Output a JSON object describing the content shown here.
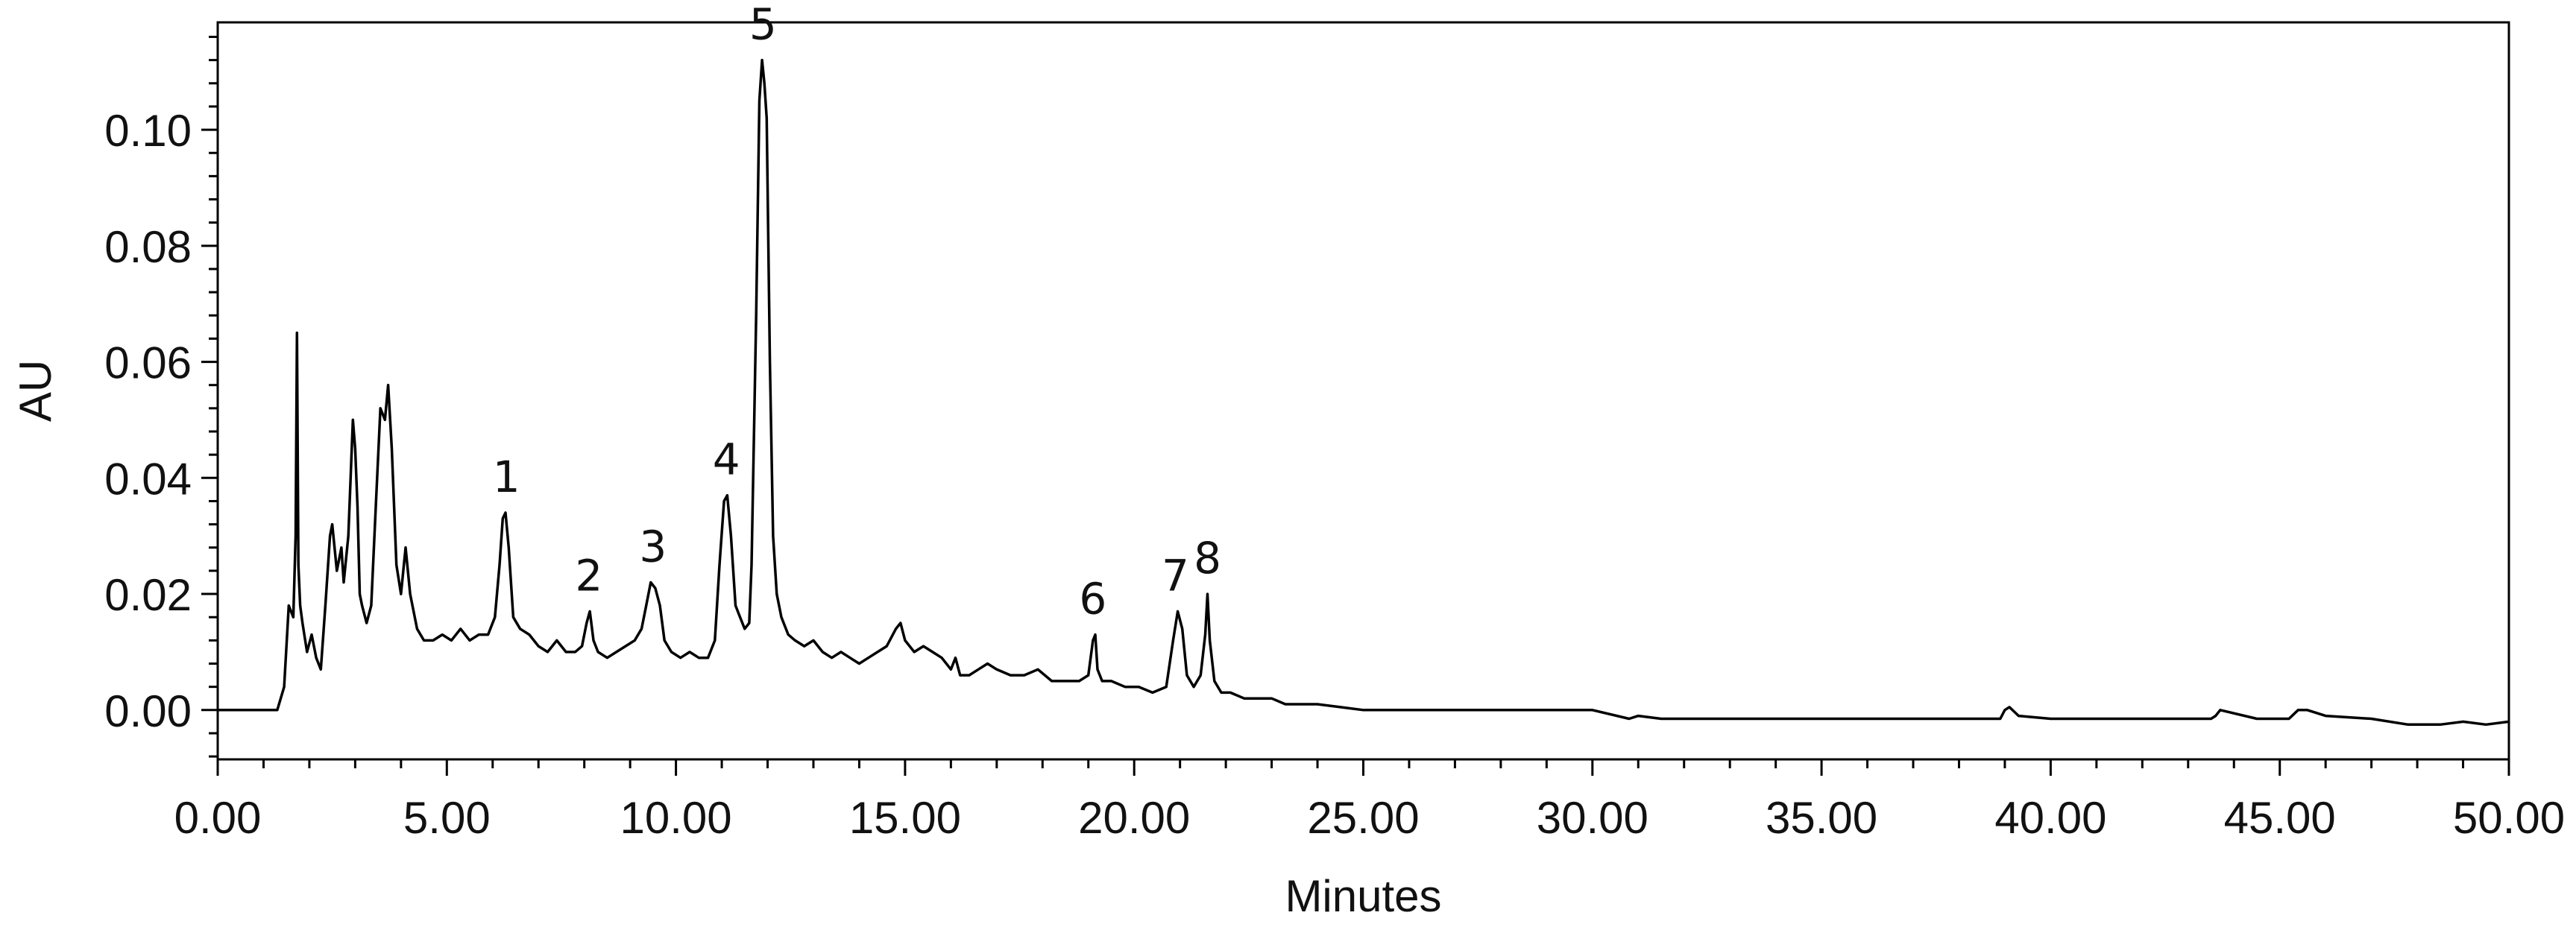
{
  "chart_data": {
    "type": "line",
    "title": "",
    "xlabel": "Minutes",
    "ylabel": "AU",
    "xlim": [
      0,
      50
    ],
    "ylim": [
      -0.0085,
      0.1185
    ],
    "x_ticks": [
      {
        "value": 0,
        "label": "0.00"
      },
      {
        "value": 5,
        "label": "5.00"
      },
      {
        "value": 10,
        "label": "10.00"
      },
      {
        "value": 15,
        "label": "15.00"
      },
      {
        "value": 20,
        "label": "20.00"
      },
      {
        "value": 25,
        "label": "25.00"
      },
      {
        "value": 30,
        "label": "30.00"
      },
      {
        "value": 35,
        "label": "35.00"
      },
      {
        "value": 40,
        "label": "40.00"
      },
      {
        "value": 45,
        "label": "45.00"
      },
      {
        "value": 50,
        "label": "50.00"
      }
    ],
    "y_ticks": [
      {
        "value": 0,
        "label": "0.00"
      },
      {
        "value": 0.02,
        "label": "0.02"
      },
      {
        "value": 0.04,
        "label": "0.04"
      },
      {
        "value": 0.06,
        "label": "0.06"
      },
      {
        "value": 0.08,
        "label": "0.08"
      },
      {
        "value": 0.1,
        "label": "0.10"
      }
    ],
    "grid": false,
    "legend": "none",
    "line_color": "#000000",
    "series": [
      {
        "x": [
          0,
          1.3,
          1.45,
          1.55,
          1.65,
          1.7,
          1.73,
          1.76,
          1.8,
          1.85,
          1.95,
          2.05,
          2.15,
          2.25,
          2.35,
          2.45,
          2.5,
          2.6,
          2.7,
          2.75,
          2.85,
          2.95,
          3.0,
          3.05,
          3.1,
          3.15,
          3.25,
          3.35,
          3.45,
          3.55,
          3.65,
          3.72,
          3.8,
          3.9,
          4.0,
          4.1,
          4.2,
          4.35,
          4.5,
          4.7,
          4.9,
          5.1,
          5.3,
          5.5,
          5.7,
          5.9,
          6.05,
          6.15,
          6.22,
          6.28,
          6.35,
          6.45,
          6.6,
          6.8,
          7.0,
          7.2,
          7.4,
          7.6,
          7.8,
          7.95,
          8.05,
          8.12,
          8.2,
          8.3,
          8.5,
          8.7,
          8.9,
          9.1,
          9.25,
          9.35,
          9.45,
          9.55,
          9.65,
          9.75,
          9.9,
          10.1,
          10.3,
          10.5,
          10.7,
          10.85,
          10.95,
          11.05,
          11.12,
          11.2,
          11.3,
          11.4,
          11.5,
          11.6,
          11.65,
          11.75,
          11.82,
          11.88,
          11.93,
          11.98,
          12.05,
          12.12,
          12.2,
          12.3,
          12.45,
          12.6,
          12.8,
          13.0,
          13.2,
          13.4,
          13.6,
          13.8,
          14.0,
          14.2,
          14.4,
          14.6,
          14.8,
          14.9,
          15.0,
          15.2,
          15.4,
          15.6,
          15.8,
          16.0,
          16.1,
          16.2,
          16.4,
          16.6,
          16.8,
          17.0,
          17.3,
          17.6,
          17.9,
          18.2,
          18.5,
          18.8,
          19.0,
          19.1,
          19.15,
          19.2,
          19.3,
          19.5,
          19.8,
          20.1,
          20.4,
          20.7,
          20.85,
          20.95,
          21.05,
          21.15,
          21.3,
          21.45,
          21.55,
          21.6,
          21.65,
          21.75,
          21.9,
          22.1,
          22.4,
          22.7,
          23.0,
          23.3,
          23.6,
          24.0,
          24.5,
          25.0,
          26.0,
          27.0,
          28.0,
          29.0,
          30.0,
          30.8,
          31.0,
          31.5,
          32.0,
          34.0,
          36.0,
          38.0,
          38.9,
          39.0,
          39.1,
          39.3,
          40.0,
          42.0,
          43.5,
          43.6,
          43.7,
          44.5,
          45.2,
          45.4,
          45.6,
          46.0,
          47.0,
          47.8,
          48.5,
          49.0,
          49.5,
          50.0
        ],
        "y": [
          0.0,
          0.0,
          0.004,
          0.018,
          0.016,
          0.03,
          0.065,
          0.025,
          0.018,
          0.015,
          0.01,
          0.013,
          0.009,
          0.007,
          0.018,
          0.03,
          0.032,
          0.024,
          0.028,
          0.022,
          0.03,
          0.05,
          0.045,
          0.035,
          0.02,
          0.018,
          0.015,
          0.018,
          0.035,
          0.052,
          0.05,
          0.056,
          0.045,
          0.025,
          0.02,
          0.028,
          0.02,
          0.014,
          0.012,
          0.012,
          0.013,
          0.012,
          0.014,
          0.012,
          0.013,
          0.013,
          0.016,
          0.025,
          0.033,
          0.034,
          0.028,
          0.016,
          0.014,
          0.013,
          0.011,
          0.01,
          0.012,
          0.01,
          0.01,
          0.011,
          0.015,
          0.017,
          0.012,
          0.01,
          0.009,
          0.01,
          0.011,
          0.012,
          0.014,
          0.018,
          0.022,
          0.021,
          0.018,
          0.012,
          0.01,
          0.009,
          0.01,
          0.009,
          0.009,
          0.012,
          0.025,
          0.036,
          0.037,
          0.03,
          0.018,
          0.016,
          0.014,
          0.015,
          0.025,
          0.068,
          0.105,
          0.112,
          0.108,
          0.102,
          0.06,
          0.03,
          0.02,
          0.016,
          0.013,
          0.012,
          0.011,
          0.012,
          0.01,
          0.009,
          0.01,
          0.009,
          0.008,
          0.009,
          0.01,
          0.011,
          0.014,
          0.015,
          0.012,
          0.01,
          0.011,
          0.01,
          0.009,
          0.007,
          0.009,
          0.006,
          0.006,
          0.007,
          0.008,
          0.007,
          0.006,
          0.006,
          0.007,
          0.005,
          0.005,
          0.005,
          0.006,
          0.012,
          0.013,
          0.007,
          0.005,
          0.005,
          0.004,
          0.004,
          0.003,
          0.004,
          0.012,
          0.017,
          0.014,
          0.006,
          0.004,
          0.006,
          0.013,
          0.02,
          0.012,
          0.005,
          0.003,
          0.003,
          0.002,
          0.002,
          0.002,
          0.001,
          0.001,
          0.001,
          0.0005,
          0.0,
          0.0,
          0.0,
          0.0,
          0.0,
          0.0,
          -0.0015,
          -0.001,
          -0.0015,
          -0.0015,
          -0.0015,
          -0.0015,
          -0.0015,
          -0.0015,
          0.0,
          0.0005,
          -0.001,
          -0.0015,
          -0.0015,
          -0.0015,
          -0.001,
          0.0,
          -0.0015,
          -0.0015,
          0.0,
          0.0,
          -0.001,
          -0.0015,
          -0.0025,
          -0.0025,
          -0.002,
          -0.0025,
          -0.002
        ]
      }
    ],
    "peak_labels": [
      {
        "label": "1",
        "x": 6.3,
        "y": 0.034
      },
      {
        "label": "2",
        "x": 8.1,
        "y": 0.017
      },
      {
        "label": "3",
        "x": 9.5,
        "y": 0.022
      },
      {
        "label": "4",
        "x": 11.1,
        "y": 0.037
      },
      {
        "label": "5",
        "x": 11.9,
        "y": 0.112
      },
      {
        "label": "6",
        "x": 19.1,
        "y": 0.013
      },
      {
        "label": "7",
        "x": 20.9,
        "y": 0.017
      },
      {
        "label": "8",
        "x": 21.6,
        "y": 0.02
      }
    ]
  }
}
